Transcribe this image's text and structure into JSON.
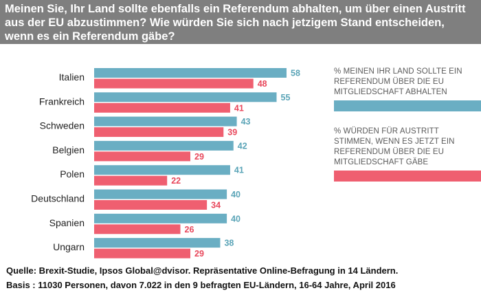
{
  "header": {
    "title_lines": [
      "Meinen Sie, Ihr Land sollte ebenfalls ein Referendum abhalten, um über einen Austritt",
      "aus der EU abzustimmen? Wie würden Sie sich nach jetzigem Stand entscheiden,",
      "wenn es ein Referendum gäbe?"
    ]
  },
  "colors": {
    "series_a": "#6aaec3",
    "series_b": "#ef5f70",
    "label_a": "#5aa4b7",
    "label_b": "#e8475b"
  },
  "legend": [
    {
      "text": "% MEINEN IHR  LAND SOLLTE EIN REFERENDUM ÜBER DIE EU MITGLIEDSCHAFT ABHALTEN",
      "color": "#6aaec3"
    },
    {
      "text": "% WÜRDEN FÜR AUSTRITT STIMMEN, WENN ES JETZT EIN REFERENDUM ÜBER DIE EU MITGLIEDSCHAFT GÄBE",
      "color": "#ef5f70"
    }
  ],
  "chart_data": {
    "type": "bar",
    "orientation": "horizontal",
    "categories": [
      "Italien",
      "Frankreich",
      "Schweden",
      "Belgien",
      "Polen",
      "Deutschland",
      "Spanien",
      "Ungarn"
    ],
    "series": [
      {
        "name": "% MEINEN IHR  LAND SOLLTE EIN REFERENDUM ÜBER DIE EU MITGLIEDSCHAFT ABHALTEN",
        "values": [
          58,
          55,
          43,
          42,
          41,
          40,
          40,
          38
        ]
      },
      {
        "name": "% WÜRDEN FÜR AUSTRITT STIMMEN, WENN ES JETZT EIN REFERENDUM ÜBER DIE EU MITGLIEDSCHAFT GÄBE",
        "values": [
          48,
          41,
          39,
          29,
          22,
          34,
          26,
          29
        ]
      }
    ],
    "xlim": [
      0,
      58
    ],
    "grid": false,
    "legend_position": "right"
  },
  "footer": {
    "line1": "Quelle: Brexit-Studie,  Ipsos Global@dvisor.  Repräsentative  Online-Befragung  in 14 Ländern.",
    "line2": "Basis : 11030 Personen,  davon 7.022  in den 9 befragten  EU-Ländern,  16-64 Jahre, April 2016"
  }
}
